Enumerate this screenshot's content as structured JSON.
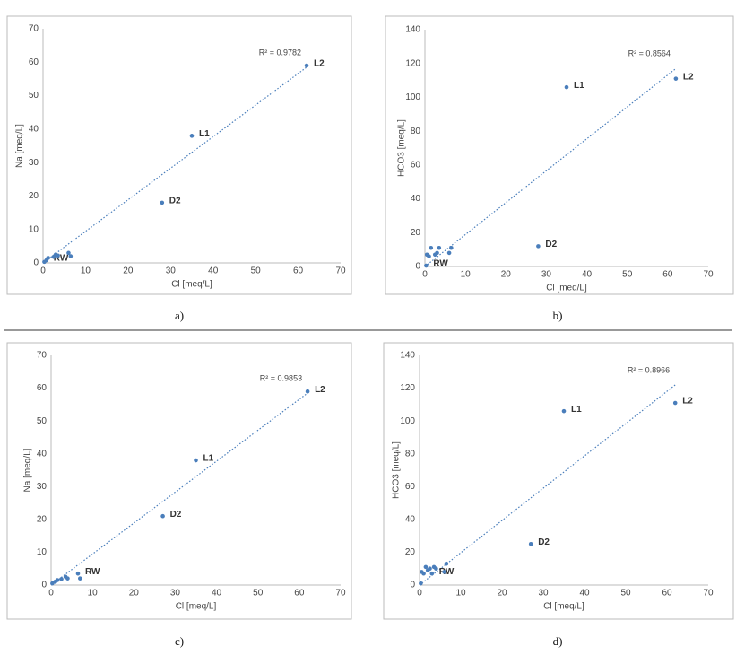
{
  "chart_data": [
    {
      "type": "scatter",
      "caption": "a)",
      "xlabel": "Cl [meq/L]",
      "ylabel": "Na [meq/L]",
      "color": "#4a7ebb",
      "x": [
        0.3,
        0.8,
        1.2,
        2.5,
        3,
        3.5,
        6,
        6.5,
        28,
        35,
        62
      ],
      "values": [
        0.3,
        0.8,
        1.5,
        1.8,
        2.5,
        2.2,
        3,
        2,
        18,
        38,
        59
      ],
      "point_labels": [
        null,
        "RW",
        null,
        null,
        null,
        null,
        null,
        null,
        "D2",
        "L1",
        "L2"
      ],
      "trendline": {
        "label": "R² = 0.9782",
        "x": [
          0,
          62
        ],
        "y": [
          0,
          58.5
        ]
      },
      "xlim": [
        0,
        70
      ],
      "ylim": [
        0,
        70
      ],
      "xticks": [
        0,
        10,
        20,
        30,
        40,
        50,
        60,
        70
      ],
      "yticks": [
        0,
        10,
        20,
        30,
        40,
        50,
        60,
        70
      ]
    },
    {
      "type": "scatter",
      "caption": "b)",
      "xlabel": "Cl [meq/L]",
      "ylabel": "HCO3 [meq/L]",
      "color": "#4a7ebb",
      "x": [
        0.3,
        0.5,
        1,
        1.5,
        2.5,
        3,
        3.5,
        6,
        6.5,
        28,
        35,
        62
      ],
      "values": [
        0.5,
        7,
        6,
        11,
        7,
        8,
        11,
        8,
        11,
        12,
        106,
        111
      ],
      "point_labels": [
        "RW",
        null,
        null,
        null,
        null,
        null,
        null,
        null,
        null,
        "D2",
        "L1",
        "L2"
      ],
      "trendline": {
        "label": "R² = 0.8564",
        "x": [
          0,
          62
        ],
        "y": [
          0,
          117
        ]
      },
      "xlim": [
        0,
        70
      ],
      "ylim": [
        0,
        140
      ],
      "xticks": [
        0,
        10,
        20,
        30,
        40,
        50,
        60,
        70
      ],
      "yticks": [
        0,
        20,
        40,
        60,
        80,
        100,
        120,
        140
      ]
    },
    {
      "type": "scatter",
      "caption": "c)",
      "xlabel": "Cl [meq/L]",
      "ylabel": "Na [meq/L]",
      "color": "#4a7ebb",
      "x": [
        0.3,
        1,
        1.5,
        2.5,
        3.5,
        4,
        6.5,
        7,
        27,
        35,
        62
      ],
      "values": [
        0.5,
        1,
        1.5,
        1.8,
        2.5,
        2,
        3.5,
        2,
        21,
        38,
        59
      ],
      "point_labels": [
        null,
        null,
        null,
        null,
        null,
        null,
        "RW",
        null,
        "D2",
        "L1",
        "L2"
      ],
      "trendline": {
        "label": "R² = 0.9853",
        "x": [
          0,
          62
        ],
        "y": [
          0,
          58.5
        ]
      },
      "xlim": [
        0,
        70
      ],
      "ylim": [
        0,
        70
      ],
      "xticks": [
        0,
        10,
        20,
        30,
        40,
        50,
        60,
        70
      ],
      "yticks": [
        0,
        10,
        20,
        30,
        40,
        50,
        60,
        70
      ]
    },
    {
      "type": "scatter",
      "caption": "d)",
      "xlabel": "Cl [meq/L]",
      "ylabel": "HCO3 [meq/L]",
      "color": "#4a7ebb",
      "x": [
        0.3,
        0.5,
        1,
        1.5,
        2,
        2.5,
        3,
        3.5,
        4,
        6,
        6.5,
        27,
        35,
        62
      ],
      "values": [
        1,
        8,
        7,
        11,
        9,
        10,
        7,
        11,
        10,
        8,
        13,
        25,
        106,
        111
      ],
      "point_labels": [
        null,
        null,
        null,
        null,
        null,
        null,
        "RW",
        null,
        null,
        null,
        null,
        "D2",
        "L1",
        "L2"
      ],
      "trendline": {
        "label": "R² = 0.8966",
        "x": [
          0,
          62
        ],
        "y": [
          0,
          122
        ]
      },
      "xlim": [
        0,
        70
      ],
      "ylim": [
        0,
        140
      ],
      "xticks": [
        0,
        10,
        20,
        30,
        40,
        50,
        60,
        70
      ],
      "yticks": [
        0,
        20,
        40,
        60,
        80,
        100,
        120,
        140
      ]
    }
  ]
}
